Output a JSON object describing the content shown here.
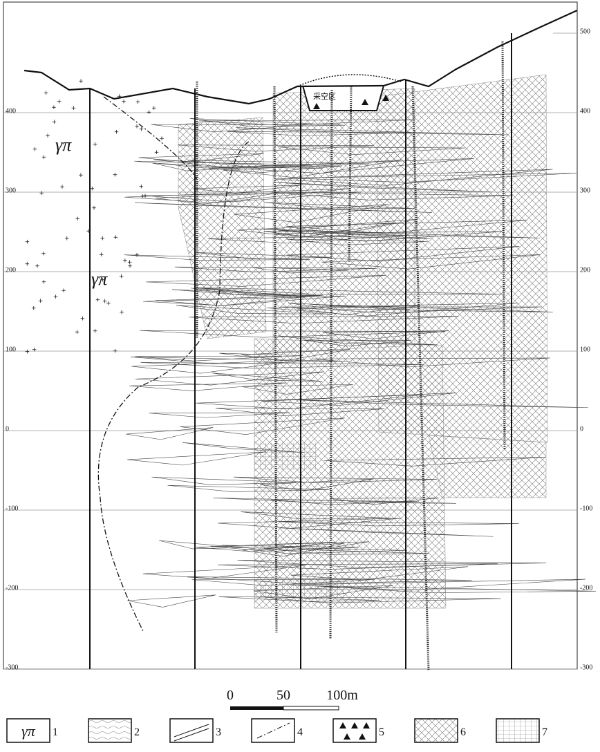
{
  "section": {
    "elevation_labels_left": [
      "400",
      "300",
      "200",
      "100",
      "0",
      "-100",
      "-200",
      "-300"
    ],
    "elevation_labels_right": [
      "500",
      "400",
      "300",
      "200",
      "100",
      "0",
      "-100",
      "-200",
      "-300"
    ],
    "rock_labels": [
      "γπ",
      "γπ"
    ],
    "goaf_label": "采空区"
  },
  "scale_bar": {
    "labels": [
      "0",
      "50",
      "100m"
    ]
  },
  "legend": {
    "symbol": "γπ",
    "numbers": [
      "1",
      "2",
      "3",
      "4",
      "5",
      "6",
      "7"
    ]
  }
}
